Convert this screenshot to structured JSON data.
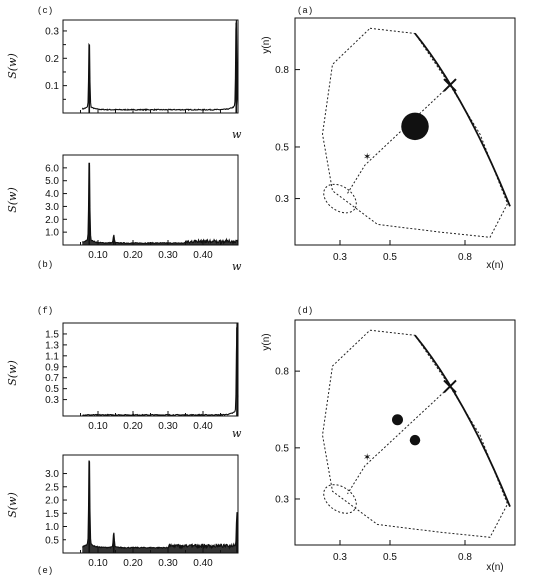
{
  "chart_data": [
    {
      "id": "c",
      "type": "line",
      "panel_label": "(c)",
      "ylabel": "S(w)",
      "xlabel": "w",
      "xlim": [
        0,
        0.5
      ],
      "ylim": [
        0,
        0.34
      ],
      "xticks": [],
      "xtick_labels": [],
      "yticks": [
        0.1,
        0.2,
        0.3
      ],
      "ytick_labels": [
        "0.1",
        "0.2",
        "0.3"
      ],
      "extra_yticks": [
        0.05,
        0.15,
        0.25
      ],
      "peaks": [
        {
          "x": 0.075,
          "y": 0.25
        },
        {
          "x": 0.495,
          "y": 0.33
        }
      ],
      "baseline": 0.012
    },
    {
      "id": "b",
      "type": "line",
      "panel_label": "(b)",
      "ylabel": "S(w)",
      "xlabel": "w",
      "xlim": [
        0,
        0.5
      ],
      "ylim": [
        0,
        7.0
      ],
      "xticks": [
        0.1,
        0.2,
        0.3,
        0.4
      ],
      "xtick_labels": [
        "0.10",
        "0.20",
        "0.30",
        "0.40"
      ],
      "yticks": [
        1,
        2,
        3,
        4,
        5,
        6
      ],
      "ytick_labels": [
        "1.0",
        "2.0",
        "3.0",
        "4.0",
        "5.0",
        "6.0"
      ],
      "peaks": [
        {
          "x": 0.075,
          "y": 6.4
        },
        {
          "x": 0.145,
          "y": 0.6
        }
      ],
      "baseline": 0.15,
      "noise_region": [
        0.35,
        0.5
      ]
    },
    {
      "id": "f",
      "type": "line",
      "panel_label": "(f)",
      "ylabel": "S(w)",
      "xlabel": "w",
      "xlim": [
        0,
        0.5
      ],
      "ylim": [
        0,
        1.7
      ],
      "xticks": [
        0.1,
        0.2,
        0.3,
        0.4
      ],
      "xtick_labels": [
        "0.10",
        "0.20",
        "0.30",
        "0.40"
      ],
      "yticks": [
        0.3,
        0.5,
        0.7,
        0.9,
        1.1,
        1.3,
        1.5
      ],
      "ytick_labels": [
        "0.3",
        "0.5",
        "0.7",
        "0.9",
        "1.1",
        "1.3",
        "1.5"
      ],
      "peaks": [
        {
          "x": 0.497,
          "y": 1.62
        }
      ],
      "baseline": 0.02
    },
    {
      "id": "e",
      "type": "line",
      "panel_label": "(e)",
      "ylabel": "S(w)",
      "xlabel": "",
      "xlim": [
        0,
        0.5
      ],
      "ylim": [
        0,
        3.7
      ],
      "xticks": [
        0.1,
        0.2,
        0.3,
        0.4
      ],
      "xtick_labels": [
        "0.10",
        "0.20",
        "0.30",
        "0.40"
      ],
      "yticks": [
        1.0,
        1.5,
        2.0,
        2.5,
        3.0
      ],
      "ytick_labels": [
        "1.0",
        "1.5",
        "2.0",
        "2.5",
        "3.0"
      ],
      "extra_yticks": [
        0.5
      ],
      "extra_ytick_labels": [
        "0.5"
      ],
      "peaks": [
        {
          "x": 0.075,
          "y": 3.45
        },
        {
          "x": 0.145,
          "y": 0.55
        },
        {
          "x": 0.497,
          "y": 1.2
        }
      ],
      "baseline": 0.2,
      "noise_region": [
        0.3,
        0.5
      ]
    },
    {
      "id": "a",
      "type": "scatter",
      "panel_label": "(a)",
      "xlabel": "x(n)",
      "ylabel": "y(n)",
      "xlim": [
        0.12,
        1.0
      ],
      "ylim": [
        0.12,
        1.0
      ],
      "xticks": [
        0.3,
        0.5,
        0.8
      ],
      "xtick_labels": [
        "0.3",
        "0.5",
        "0.8"
      ],
      "yticks": [
        0.3,
        0.5,
        0.8
      ],
      "ytick_labels": [
        "0.3",
        "0.5",
        "0.8"
      ],
      "fixed_point": {
        "x": 0.74,
        "y": 0.74
      },
      "blobs": [
        {
          "x": 0.6,
          "y": 0.58,
          "r": 0.055
        }
      ]
    },
    {
      "id": "d",
      "type": "scatter",
      "panel_label": "(d)",
      "xlabel": "x(n)",
      "ylabel": "y(n)",
      "xlim": [
        0.12,
        1.0
      ],
      "ylim": [
        0.12,
        1.0
      ],
      "xticks": [
        0.3,
        0.5,
        0.8
      ],
      "xtick_labels": [
        "0.3",
        "0.5",
        "0.8"
      ],
      "yticks": [
        0.3,
        0.5,
        0.8
      ],
      "ytick_labels": [
        "0.3",
        "0.5",
        "0.8"
      ],
      "fixed_point": {
        "x": 0.74,
        "y": 0.74
      },
      "blobs": [
        {
          "x": 0.53,
          "y": 0.61,
          "r": 0.022
        },
        {
          "x": 0.6,
          "y": 0.53,
          "r": 0.021
        }
      ]
    }
  ]
}
